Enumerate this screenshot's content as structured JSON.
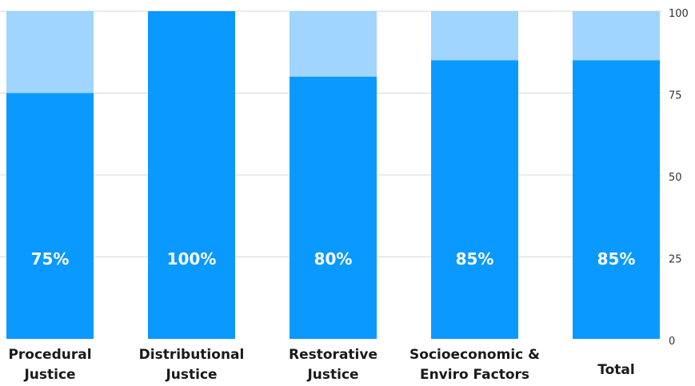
{
  "chart_data": {
    "type": "bar",
    "stacked": true,
    "categories": [
      [
        "Procedural",
        "Justice"
      ],
      [
        "Distributional",
        "Justice"
      ],
      [
        "Restorative",
        "Justice"
      ],
      [
        "Socioeconomic &",
        "Enviro Factors"
      ],
      [
        "Total"
      ]
    ],
    "values": [
      75,
      100,
      80,
      85,
      85
    ],
    "data_labels": [
      "75%",
      "100%",
      "80%",
      "85%",
      "85%"
    ],
    "y_ticks": [
      0,
      25,
      50,
      75,
      100
    ],
    "ylim": [
      0,
      100
    ],
    "y_axis_side": "right",
    "grid": true,
    "colors": {
      "value": "#0a99ff",
      "remainder": "#9fd5ff",
      "grid": "#d9d9d9"
    }
  }
}
